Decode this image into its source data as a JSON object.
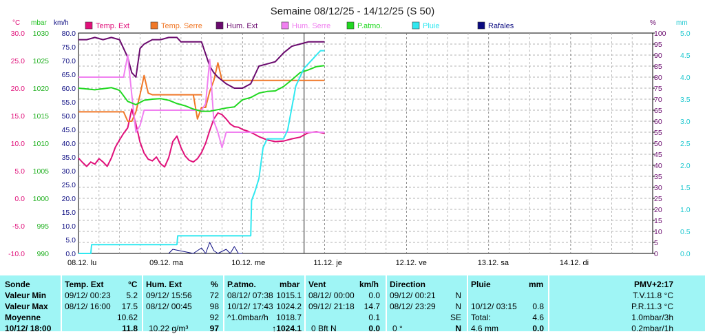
{
  "title": "Semaine 08/12/25 - 14/12/25 (S 50)",
  "colors": {
    "temp_ext": "#e0107a",
    "temp_serre": "#f07828",
    "hum_ext": "#6a0a6e",
    "hum_serre": "#f080f0",
    "patmo": "#20d820",
    "pluie": "#30e8f0",
    "rafales": "#0a0a80",
    "panel_bg": "#9ff5f5"
  },
  "axes": {
    "temp": {
      "unit": "°C",
      "ticks": [
        "30.0",
        "25.0",
        "20.0",
        "15.0",
        "10.0",
        "5.0",
        "0.0",
        "-5.0",
        "-10.0"
      ],
      "min": -10,
      "max": 30
    },
    "mbar": {
      "unit": "mbar",
      "ticks": [
        "1030",
        "1025",
        "1020",
        "1015",
        "1010",
        "1005",
        "1000",
        "995",
        "990"
      ],
      "min": 990,
      "max": 1030
    },
    "kmh": {
      "unit": "km/h",
      "ticks": [
        "80.0",
        "75.0",
        "70.0",
        "65.0",
        "60.0",
        "55.0",
        "50.0",
        "45.0",
        "40.0",
        "35.0",
        "30.0",
        "25.0",
        "20.0",
        "15.0",
        "10.0",
        "5.0",
        "0.0"
      ],
      "min": 0,
      "max": 80
    },
    "pct": {
      "unit": "%",
      "ticks": [
        "100",
        "95",
        "90",
        "85",
        "80",
        "75",
        "70",
        "65",
        "60",
        "55",
        "50",
        "45",
        "40",
        "35",
        "30",
        "25",
        "20",
        "15",
        "10",
        "5",
        "0"
      ],
      "min": 0,
      "max": 100
    },
    "mm": {
      "unit": "mm",
      "ticks": [
        "5.0",
        "4.5",
        "4.0",
        "3.5",
        "3.0",
        "2.5",
        "2.0",
        "1.5",
        "1.0",
        "0.5",
        "0.0"
      ],
      "min": 0,
      "max": 5
    },
    "x_labels": [
      "08.12.  lu",
      "09.12.  ma",
      "10.12.  me",
      "11.12.  je",
      "12.12.  ve",
      "13.12.  sa",
      "14.12.  di"
    ]
  },
  "legend": [
    "Temp. Ext",
    "Temp. Serre",
    "Hum. Ext",
    "Hum. Serre",
    "P.atmo.",
    "Pluie",
    "Rafales"
  ],
  "chart_data": {
    "type": "line",
    "title": "Semaine 08/12/25 - 14/12/25 (S 50)",
    "x_unit": "days since 08.12 00:00",
    "x_range": [
      0,
      7
    ],
    "grid": true,
    "legend_position": "top",
    "series": [
      {
        "name": "Temp. Ext",
        "axis": "temp",
        "x": [
          0,
          0.05,
          0.1,
          0.15,
          0.2,
          0.25,
          0.3,
          0.35,
          0.4,
          0.45,
          0.5,
          0.55,
          0.6,
          0.65,
          0.7,
          0.75,
          0.8,
          0.85,
          0.9,
          0.95,
          1.0,
          1.05,
          1.1,
          1.15,
          1.2,
          1.25,
          1.3,
          1.35,
          1.4,
          1.45,
          1.5,
          1.55,
          1.6,
          1.65,
          1.7,
          1.75,
          1.8,
          1.85,
          1.9,
          1.95,
          2.0,
          2.1,
          2.2,
          2.3,
          2.4,
          2.5,
          2.6,
          2.7,
          2.8,
          2.9,
          3.0
        ],
        "y": [
          7.3,
          6.5,
          5.8,
          6.6,
          6.2,
          7.2,
          6.6,
          5.8,
          7.3,
          9.3,
          10.6,
          11.8,
          12.8,
          16.2,
          13.5,
          10.2,
          8.2,
          7.1,
          6.8,
          7.5,
          6.3,
          5.7,
          7.4,
          10.3,
          11.3,
          9.2,
          7.7,
          6.9,
          6.6,
          7.2,
          8.3,
          10.0,
          12.3,
          14.4,
          15.5,
          15.2,
          14.4,
          13.5,
          13.0,
          12.9,
          12.5,
          12.0,
          11.2,
          10.6,
          10.3,
          10.4,
          10.8,
          11.1,
          11.9,
          12.1,
          11.8
        ]
      },
      {
        "name": "Temp. Serre",
        "axis": "temp",
        "x": [
          0,
          0.3,
          0.55,
          0.6,
          0.65,
          0.7,
          0.75,
          0.8,
          0.85,
          0.9,
          1.0,
          1.5,
          1.4,
          1.45,
          1.5,
          1.55,
          1.6,
          1.65,
          1.7,
          1.75,
          1.8,
          2.0,
          2.5,
          3.0
        ],
        "y": [
          15.7,
          15.7,
          15.7,
          14.0,
          14.0,
          15.7,
          18.8,
          22.3,
          19.1,
          18.8,
          18.8,
          18.8,
          18.8,
          14.4,
          16.5,
          16.5,
          19.4,
          21.4,
          24.6,
          21.4,
          21.4,
          21.4,
          21.4,
          21.4
        ]
      },
      {
        "name": "Hum. Ext",
        "axis": "pct",
        "x": [
          0,
          0.1,
          0.2,
          0.3,
          0.4,
          0.5,
          0.6,
          0.65,
          0.7,
          0.75,
          0.8,
          0.9,
          1.0,
          1.1,
          1.2,
          1.25,
          1.3,
          1.4,
          1.5,
          1.6,
          1.65,
          1.7,
          1.8,
          1.9,
          2.0,
          2.1,
          2.2,
          2.3,
          2.4,
          2.5,
          2.6,
          2.7,
          2.8,
          3.0
        ],
        "y": [
          97,
          97,
          98,
          97,
          98,
          97,
          89,
          82,
          80,
          93,
          95,
          97,
          97,
          98,
          98,
          96,
          96,
          96,
          96,
          85,
          82,
          80,
          77,
          75,
          75,
          77,
          85,
          86,
          87,
          91,
          94,
          95,
          96,
          96
        ]
      },
      {
        "name": "Hum. Serre",
        "axis": "pct",
        "x": [
          0,
          0.3,
          0.37,
          0.43,
          0.55,
          0.6,
          0.65,
          0.7,
          0.75,
          0.8,
          1.0,
          1.5,
          1.45,
          1.5,
          1.55,
          1.6,
          1.65,
          1.7,
          1.75,
          1.8,
          1.9,
          2.0,
          2.5,
          3.0
        ],
        "y": [
          80,
          80,
          80,
          80,
          80,
          90,
          72,
          55,
          58,
          65,
          65,
          65,
          65,
          65,
          68,
          88,
          60,
          55,
          48,
          55,
          55,
          55,
          55,
          55
        ],
        "note": "rough"
      },
      {
        "name": "P.atmo.",
        "axis": "mbar",
        "x": [
          0,
          0.2,
          0.4,
          0.5,
          0.6,
          0.7,
          0.8,
          0.9,
          1.0,
          1.1,
          1.2,
          1.3,
          1.4,
          1.5,
          1.6,
          1.7,
          1.8,
          1.9,
          2.0,
          2.1,
          2.2,
          2.3,
          2.4,
          2.5,
          2.6,
          2.7,
          2.8,
          2.9,
          3.0
        ],
        "y": [
          1020.0,
          1019.7,
          1020.1,
          1019.6,
          1017.6,
          1017.0,
          1017.8,
          1018.0,
          1018.1,
          1017.8,
          1017.2,
          1016.8,
          1016.2,
          1015.8,
          1015.8,
          1016.1,
          1016.4,
          1016.6,
          1017.9,
          1018.3,
          1019.1,
          1019.4,
          1019.5,
          1020.3,
          1021.5,
          1022.8,
          1023.3,
          1023.9,
          1024.1
        ]
      },
      {
        "name": "Pluie",
        "axis": "mm",
        "x": [
          0,
          0.15,
          0.16,
          1.2,
          1.21,
          2.1,
          2.11,
          2.15,
          2.2,
          2.25,
          2.3,
          2.4,
          2.5,
          2.55,
          2.65,
          2.75,
          2.85,
          2.9,
          2.95,
          3.0
        ],
        "y": [
          0.0,
          0.0,
          0.2,
          0.2,
          0.4,
          0.4,
          1.2,
          1.4,
          1.7,
          2.4,
          2.6,
          2.6,
          2.6,
          2.8,
          3.8,
          4.2,
          4.4,
          4.5,
          4.6,
          4.6
        ]
      },
      {
        "name": "Rafales",
        "axis": "kmh",
        "x": [
          1.1,
          1.15,
          1.4,
          1.5,
          1.55,
          1.6,
          1.65,
          1.7,
          1.8,
          1.85,
          1.9,
          1.95,
          2.0
        ],
        "y": [
          0,
          1.5,
          0,
          2.0,
          0,
          4.0,
          1.0,
          0,
          1.5,
          0,
          2.5,
          0,
          0
        ]
      }
    ]
  },
  "panel": {
    "headers": {
      "sonde": "Sonde",
      "temp": "Temp. Ext",
      "temp_unit": "°C",
      "hum": "Hum. Ext",
      "hum_unit": "%",
      "patmo": "P.atmo.",
      "patmo_unit": "mbar",
      "vent": "Vent",
      "vent_unit": "km/h",
      "direction": "Direction",
      "pluie": "Pluie",
      "pluie_unit": "mm",
      "pmv": "PMV+2:17"
    },
    "rows": [
      "Valeur Min",
      "Valeur Max",
      "Moyenne",
      "10/12/ 18:00"
    ],
    "temp": [
      [
        "09/12/  00:23",
        "5.2"
      ],
      [
        "08/12/  16:00",
        "17.5"
      ],
      [
        "",
        "10.62"
      ],
      [
        "",
        "11.8"
      ]
    ],
    "hum": [
      [
        "09/12/  15:56",
        "72"
      ],
      [
        "08/12/  00:45",
        "98"
      ],
      [
        "",
        "92"
      ],
      [
        "10.22 g/m³",
        "97"
      ]
    ],
    "patmo": [
      [
        "08/12/  07:38",
        "1015.1"
      ],
      [
        "10/12/  17:43",
        "1024.2"
      ],
      [
        "^1.0mbar/h",
        "1018.7"
      ],
      [
        "",
        "↑1024.1"
      ]
    ],
    "vent": [
      [
        "08/12/  00:00",
        "0.0"
      ],
      [
        "09/12/  21:18",
        "14.7"
      ],
      [
        "",
        "0.1"
      ],
      [
        "0 Bft N",
        "0.0"
      ]
    ],
    "direction": [
      [
        "09/12/  00:21",
        "N"
      ],
      [
        "08/12/  23:29",
        "N"
      ],
      [
        "",
        "SE"
      ],
      [
        "0 °",
        "N"
      ]
    ],
    "pluie": [
      [
        "",
        ""
      ],
      [
        "10/12/  03:15",
        "0.8"
      ],
      [
        "Total:",
        "4.6"
      ],
      [
        "4.6 mm",
        "0.0"
      ]
    ],
    "pmv": [
      "T.V.11.8 °C",
      "P.R.11.3 °C",
      "1.0mbar/3h",
      "0.2mbar/1h"
    ]
  }
}
